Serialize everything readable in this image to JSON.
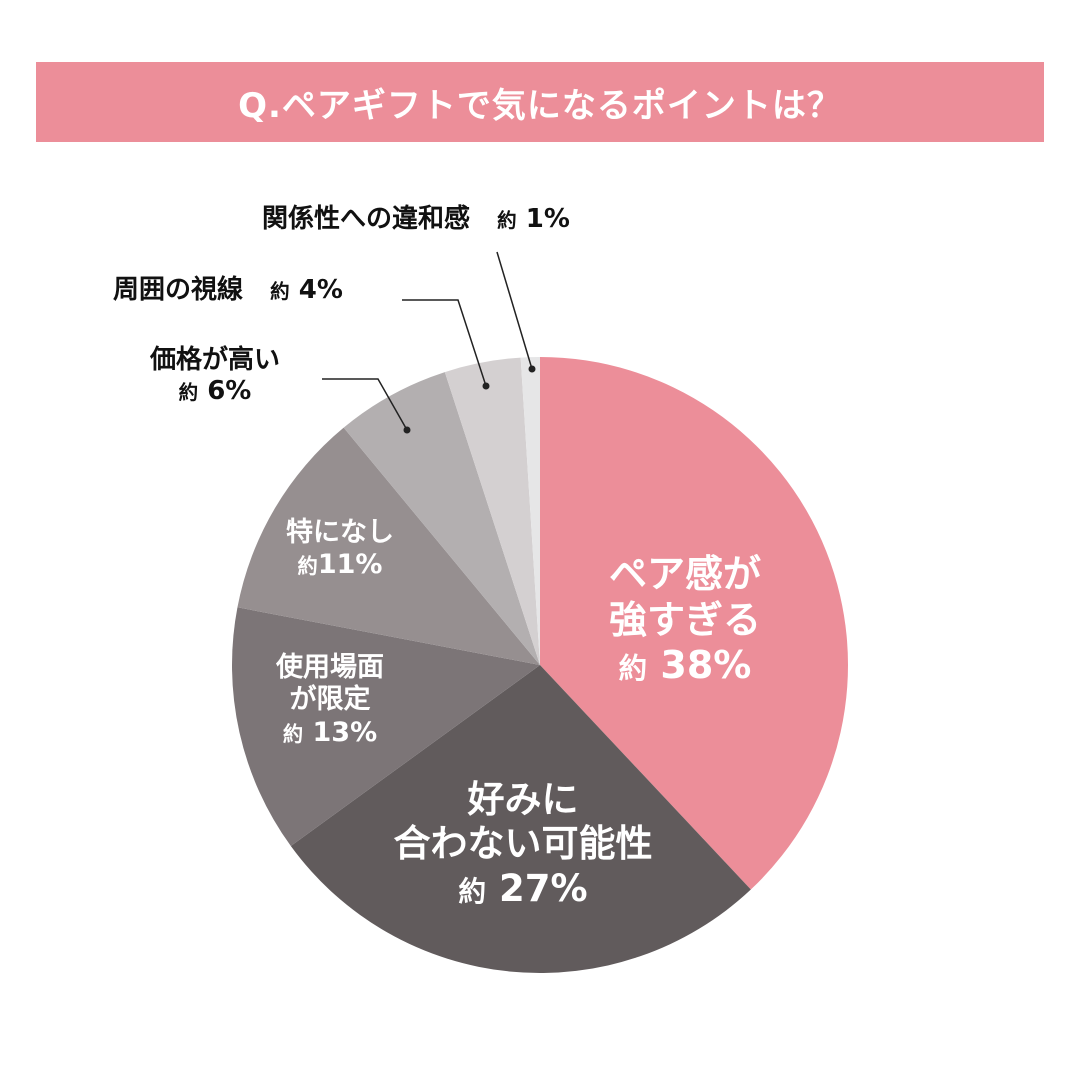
{
  "title": "Q.ペアギフトで気になるポイントは？",
  "colors": {
    "banner": "#ec8e99",
    "slices": [
      "#ec8e99",
      "#615b5c",
      "#7c7577",
      "#968f90",
      "#b3afb0",
      "#d4d0d1",
      "#e6e6e7"
    ]
  },
  "labels": {
    "s0": {
      "line1": "ペア感が",
      "line2": "強すぎる",
      "prefix": "約",
      "pct": "38%"
    },
    "s1": {
      "line1": "好みに",
      "line2": "合わない可能性",
      "prefix": "約",
      "pct": "27%"
    },
    "s2": {
      "line1": "使用場面",
      "line2": "が限定",
      "prefix": "約",
      "pct": "13%"
    },
    "s3": {
      "line1": "特になし",
      "prefix": "約",
      "pct": "11%"
    },
    "s4": {
      "line1": "価格が高い",
      "prefix": "約",
      "pct": "6%"
    },
    "s5": {
      "line1": "周囲の視線",
      "prefix": "約",
      "pct": "4%"
    },
    "s6": {
      "line1": "関係性への違和感",
      "prefix": "約",
      "pct": "1%"
    }
  },
  "chart_data": {
    "type": "pie",
    "title": "Q.ペアギフトで気になるポイントは？",
    "categories": [
      "ペア感が強すぎる",
      "好みに合わない可能性",
      "使用場面が限定",
      "特になし",
      "価格が高い",
      "周囲の視線",
      "関係性への違和感"
    ],
    "values": [
      38,
      27,
      13,
      11,
      6,
      4,
      1
    ],
    "unit": "%",
    "value_prefix": "約",
    "start_angle": "12 o'clock",
    "direction": "clockwise",
    "legend": "none (direct labels; small slices use leader lines)"
  }
}
